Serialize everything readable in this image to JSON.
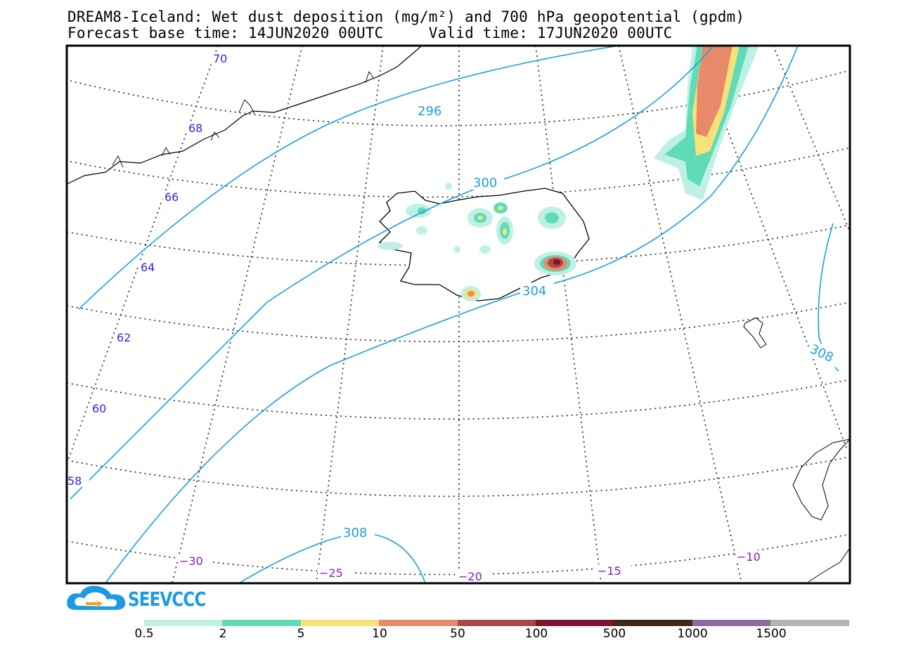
{
  "title": {
    "line1": "DREAM8-Iceland: Wet dust deposition (mg/m²) and 700 hPa geopotential (gpdm)",
    "line2_left": "Forecast base time: 14JUN2020 00UTC",
    "line2_right": "Valid time: 17JUN2020 00UTC"
  },
  "map": {
    "latitude_labels": [
      "70",
      "68",
      "66",
      "64",
      "62",
      "60",
      "58"
    ],
    "longitude_labels": [
      "−30",
      "−25",
      "−20",
      "−15",
      "−10"
    ],
    "contour_labels": [
      "296",
      "300",
      "304",
      "308",
      "308"
    ],
    "contour_color": "#1aa0e0",
    "lat_label_color": "#2b2bd6",
    "lon_label_color": "#8a19c9"
  },
  "legend": {
    "ticks": [
      "0.5",
      "2",
      "5",
      "10",
      "50",
      "100",
      "500",
      "1000",
      "1500"
    ],
    "colors": [
      "#bff0e6",
      "#5fdcb6",
      "#f7e27a",
      "#e8896a",
      "#a84848",
      "#80122e",
      "#3d2a1a",
      "#8e6aa0",
      "#b3b3b3"
    ]
  },
  "logo": {
    "text": "SEEVCCC"
  }
}
